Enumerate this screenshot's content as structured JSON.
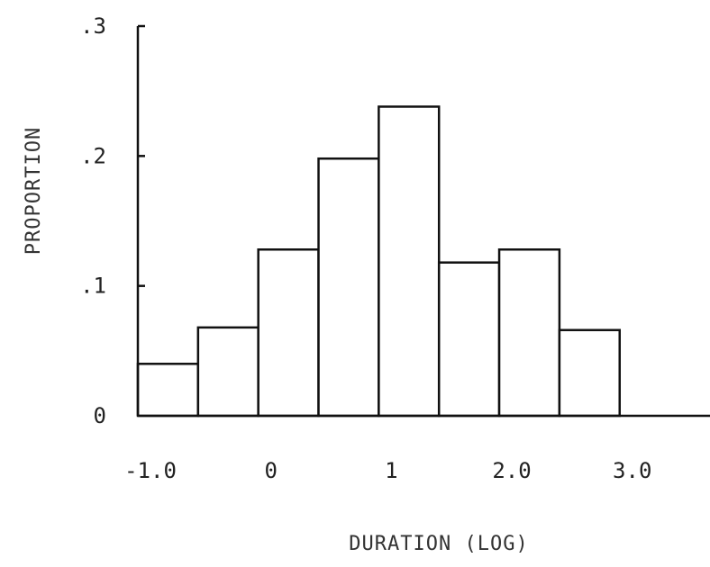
{
  "chart_data": {
    "type": "bar",
    "xlabel": "DURATION (LOG)",
    "ylabel": "PROPORTION",
    "ylim": [
      0,
      0.3
    ],
    "xlim": [
      -1.0,
      3.75
    ],
    "bin_width": 0.5,
    "bins": [
      {
        "x_start": -1.0,
        "x_end": -0.5,
        "value": 0.04
      },
      {
        "x_start": -0.5,
        "x_end": 0.0,
        "value": 0.068
      },
      {
        "x_start": 0.0,
        "x_end": 0.5,
        "value": 0.128
      },
      {
        "x_start": 0.5,
        "x_end": 1.0,
        "value": 0.198
      },
      {
        "x_start": 1.0,
        "x_end": 1.5,
        "value": 0.238
      },
      {
        "x_start": 1.5,
        "x_end": 2.0,
        "value": 0.118
      },
      {
        "x_start": 2.0,
        "x_end": 2.5,
        "value": 0.128
      },
      {
        "x_start": 2.5,
        "x_end": 3.0,
        "value": 0.066
      }
    ],
    "x_ticks": [
      {
        "value": -1.0,
        "label": "-1.0"
      },
      {
        "value": 0.0,
        "label": "0"
      },
      {
        "value": 1.0,
        "label": "1"
      },
      {
        "value": 2.0,
        "label": "2.0"
      },
      {
        "value": 3.0,
        "label": "3.0"
      }
    ],
    "y_ticks": [
      {
        "value": 0,
        "label": "0"
      },
      {
        "value": 0.1,
        "label": ".1"
      },
      {
        "value": 0.2,
        "label": ".2"
      },
      {
        "value": 0.3,
        "label": ".3"
      }
    ],
    "grid": false
  }
}
